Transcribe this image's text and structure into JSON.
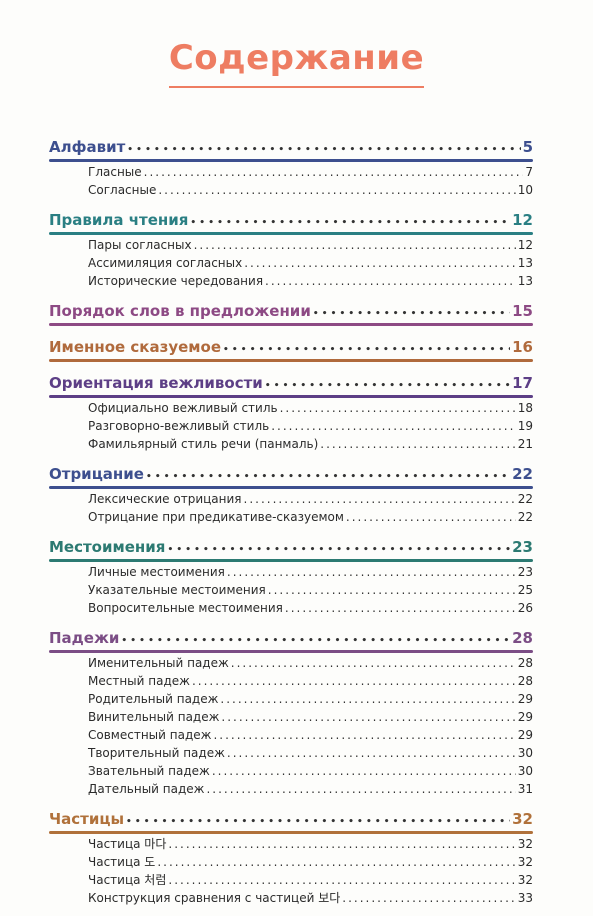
{
  "title": "Содержание",
  "sections": [
    {
      "label": "Алфавит",
      "page": "5",
      "color": "#3d4f8e",
      "items": [
        {
          "label": "Гласные",
          "page": "7"
        },
        {
          "label": "Согласные",
          "page": "10"
        }
      ]
    },
    {
      "label": "Правила  чтения",
      "page": "12",
      "color": "#2a7f83",
      "items": [
        {
          "label": "Пары  согласных",
          "page": "12"
        },
        {
          "label": "Ассимиляция  согласных",
          "page": "13"
        },
        {
          "label": "Исторические  чередования",
          "page": "13"
        }
      ]
    },
    {
      "label": "Порядок  слов  в  предложении",
      "page": "15",
      "color": "#8d4a84",
      "items": []
    },
    {
      "label": "Именное  сказуемое",
      "page": "16",
      "color": "#b06a3c",
      "items": []
    },
    {
      "label": "Ориентация  вежливости",
      "page": "17",
      "color": "#5d3f86",
      "items": [
        {
          "label": "Официально  вежливый  стиль",
          "page": "18"
        },
        {
          "label": "Разговорно-вежливый  стиль",
          "page": "19"
        },
        {
          "label": "Фамильярный  стиль  речи  (панмаль)",
          "page": "21"
        }
      ]
    },
    {
      "label": "Отрицание",
      "page": "22",
      "color": "#3d4f8e",
      "items": [
        {
          "label": "Лексические  отрицания",
          "page": "22"
        },
        {
          "label": "Отрицание  при  предикативе-сказуемом",
          "page": "22"
        }
      ]
    },
    {
      "label": "Местоимения",
      "page": "23",
      "color": "#2c7a72",
      "items": [
        {
          "label": "Личные  местоимения",
          "page": "23"
        },
        {
          "label": "Указательные  местоимения",
          "page": "25"
        },
        {
          "label": "Вопросительные  местоимения",
          "page": "26"
        }
      ]
    },
    {
      "label": "Падежи",
      "page": "28",
      "color": "#7b4d85",
      "items": [
        {
          "label": "Именительный  падеж",
          "page": "28"
        },
        {
          "label": "Местный  падеж",
          "page": "28"
        },
        {
          "label": "Родительный  падеж",
          "page": "29"
        },
        {
          "label": "Винительный  падеж",
          "page": "29"
        },
        {
          "label": "Совместный  падеж",
          "page": "29"
        },
        {
          "label": "Творительный  падеж",
          "page": "30"
        },
        {
          "label": "Звательный  падеж",
          "page": "30"
        },
        {
          "label": "Дательный  падеж",
          "page": "31"
        }
      ]
    },
    {
      "label": "Частицы",
      "page": "32",
      "color": "#b0713a",
      "items": [
        {
          "label": "Частица  마다",
          "page": "32"
        },
        {
          "label": "Частица  도",
          "page": "32"
        },
        {
          "label": "Частица  처럼",
          "page": "32"
        },
        {
          "label": "Конструкция  сравнения    с  частицей  보다",
          "page": "33"
        }
      ]
    }
  ]
}
